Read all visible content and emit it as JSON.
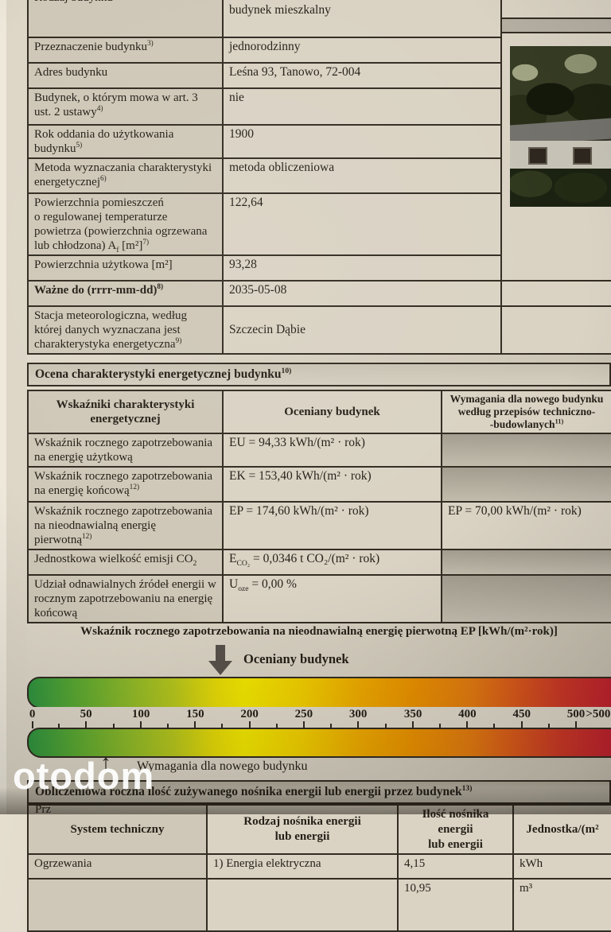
{
  "watermark": {
    "text": "otodom"
  },
  "building_info": {
    "rows": [
      {
        "label_html": "Rodzaj budynku",
        "value": "budynek mieszkalny"
      },
      {
        "label_html": "Przeznaczenie budynku<sup>3)</sup>",
        "value": "jednorodzinny"
      },
      {
        "label_html": "Adres budynku",
        "value": "Leśna 93, Tanowo, 72-004"
      },
      {
        "label_html": "Budynek, o którym mowa w art. 3 ust. 2 ustawy<sup>4)</sup>",
        "value": "nie"
      },
      {
        "label_html": "Rok oddania do użytkowania budynku<sup>5)</sup>",
        "value": "1900"
      },
      {
        "label_html": "Metoda wyznaczania charakterystyki energetycznej<sup>6)</sup>",
        "value": "metoda obliczeniowa"
      },
      {
        "label_html": "Powierzchnia pomieszczeń<br>o regulowanej temperaturze powietrza (powierzchnia ogrzewana<br>lub chłodzona) A<sub>f</sub> [m²]<sup>7)</sup>",
        "value": "122,64"
      },
      {
        "label_html": "Powierzchnia użytkowa [m²]",
        "value": "93,28"
      },
      {
        "label_html": "Ważne do (rrrr-mm-dd)<sup>8)</sup>",
        "value": "2035-05-08"
      },
      {
        "label_html": "Stacja meteorologiczna, według której danych wyznaczana jest charakterystyka energetyczna<sup>9)</sup>",
        "value": "Szczecin Dąbie"
      }
    ]
  },
  "assessment": {
    "section_title_html": "Ocena charakterystyki energetycznej budynku<sup>10)</sup>",
    "headers": {
      "indicators": "Wskaźniki charakterystyki energetycznej",
      "assessed": "Oceniany budynek",
      "required_html": "Wymagania dla nowego budynku<br>według przepisów techniczno-<br>-budowlanych<sup>11)</sup>"
    },
    "rows": [
      {
        "label_html": "Wskaźnik rocznego zapotrzebowania na energię użytkową",
        "assessed_html": "EU = 94,33 kWh/(m² · rok)",
        "required_html": ""
      },
      {
        "label_html": "Wskaźnik rocznego zapotrzebowania na energię końcową<sup>12)</sup>",
        "assessed_html": "EK = 153,40 kWh/(m² · rok)",
        "required_html": ""
      },
      {
        "label_html": "Wskaźnik rocznego zapotrzebowania na nieodnawialną energię pierwotną<sup>12)</sup>",
        "assessed_html": "EP = 174,60 kWh/(m² · rok)",
        "required_html": "EP = 70,00 kWh/(m² · rok)"
      },
      {
        "label_html": "Jednostkowa wielkość emisji CO<sub>2</sub>",
        "assessed_html": "E<sub>CO₂</sub> = 0,0346 t CO₂/(m² · rok)",
        "required_html": ""
      },
      {
        "label_html": "Udział odnawialnych źródeł energii w rocznym zapotrzebowaniu na energię końcową",
        "assessed_html": "U<sub>oze</sub> = 0,00 %",
        "required_html": ""
      }
    ]
  },
  "ep_scale": {
    "caption": "Wskaźnik rocznego zapotrzebowania na nieodnawialną energię pierwotną EP [kWh/(m²·rok)]",
    "assessed_label": "Oceniany budynek",
    "required_label": "Wymagania dla nowego budynku",
    "assessed_value": "174,60",
    "required_value": "70,00",
    "min": 0,
    "max": 500,
    "tick_labels": [
      "0",
      "50",
      "100",
      "150",
      "200",
      "250",
      "300",
      "350",
      "400",
      "450",
      "500",
      ">500"
    ],
    "colors": {
      "green": "#2f9440",
      "yellow": "#efe400",
      "orange": "#e89000",
      "red": "#c2222f"
    }
  },
  "consumption": {
    "section_title_html": "Obliczeniowa roczna ilość zużywanego nośnika energii lub energii przez budynek<sup>13)</sup>",
    "headers": {
      "system": "System techniczny",
      "carrier_html": "Rodzaj nośnika energii<br>lub energii",
      "amount_html": "Ilość nośnika energii<br>lub energii",
      "unit_html": "Jednostka/(m²"
    },
    "rows": [
      {
        "system": "Ogrzewania",
        "carrier": "1) Energia elektryczna",
        "amount": "4,15",
        "unit": "kWh"
      },
      {
        "system": "",
        "carrier": "",
        "amount": "10,95",
        "unit": "m³"
      }
    ],
    "partial_fragment": "Prz"
  }
}
